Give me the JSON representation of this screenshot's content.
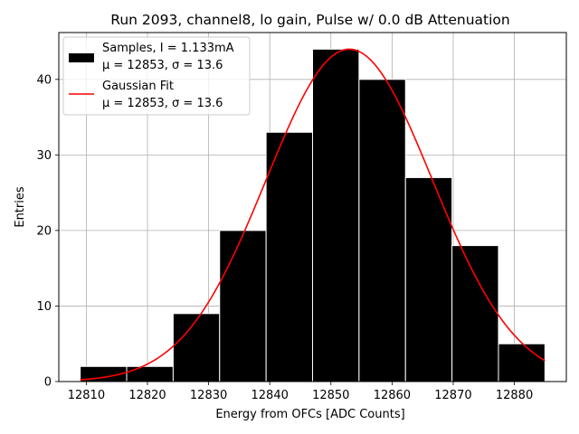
{
  "chart_data": {
    "type": "bar",
    "title": "Run 2093, channel8, lo gain, Pulse w/ 0.0 dB Attenuation",
    "xlabel": "Energy from OFCs [ADC Counts]",
    "ylabel": "Entries",
    "xlim": [
      12805.5,
      12888.5
    ],
    "ylim": [
      0,
      46.2
    ],
    "xticks": [
      12810,
      12820,
      12830,
      12840,
      12850,
      12860,
      12870,
      12880
    ],
    "yticks": [
      0,
      10,
      20,
      30,
      40
    ],
    "grid": true,
    "legend_position": "top-left",
    "histogram": {
      "name": "Samples, I = 1.133mA",
      "stats": "μ = 12853, σ = 13.6",
      "bin_edges": [
        12809,
        12816.6,
        12824.2,
        12831.8,
        12839.4,
        12847.0,
        12854.6,
        12862.2,
        12869.8,
        12877.4,
        12885.0
      ],
      "counts": [
        2,
        2,
        9,
        20,
        33,
        44,
        40,
        27,
        18,
        5
      ],
      "color": "#000000"
    },
    "fit": {
      "name": "Gaussian Fit",
      "stats": "μ = 12853, σ = 13.6",
      "mu": 12853,
      "sigma": 13.6,
      "amplitude": 44,
      "x_range": [
        12809,
        12885
      ],
      "color": "#ff0000"
    }
  }
}
